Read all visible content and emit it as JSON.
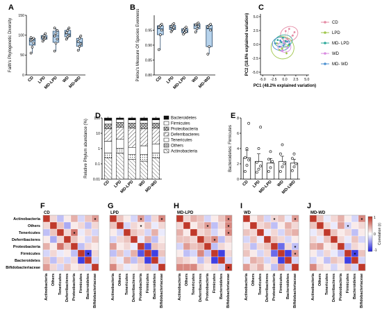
{
  "panel_letters": [
    "A",
    "B",
    "C",
    "D",
    "E",
    "F",
    "G",
    "H",
    "I",
    "J"
  ],
  "colors": {
    "box_fill": "#b7d3ec",
    "box_stroke": "#2a4a6a",
    "bar_fill": "#ffffff",
    "heat_pos": "#c0392b",
    "heat_neg": "#2b2be0"
  },
  "groups": [
    "CD",
    "LPD",
    "MD-LPD",
    "WD",
    "MD-WD"
  ],
  "chart_data": [
    {
      "panel": "A",
      "type": "box",
      "ylabel": "Faith's Phylogenetic Diversity",
      "ylim": [
        0,
        150
      ],
      "yticks": [
        0,
        50,
        100,
        150
      ],
      "categories": [
        "CD",
        "LPD",
        "MD-LPD",
        "WD",
        "MD-WD"
      ],
      "boxes": [
        {
          "min": 55,
          "q1": 75,
          "median": 87,
          "q3": 92,
          "max": 94,
          "points": [
            55,
            70,
            80,
            86,
            89,
            92,
            94
          ]
        },
        {
          "min": 85,
          "q1": 90,
          "median": 94,
          "q3": 99,
          "max": 104,
          "points": [
            85,
            90,
            93,
            95,
            99,
            104
          ]
        },
        {
          "min": 60,
          "q1": 82,
          "median": 98,
          "q3": 110,
          "max": 118,
          "points": [
            60,
            80,
            90,
            98,
            104,
            112,
            118
          ]
        },
        {
          "min": 90,
          "q1": 96,
          "median": 103,
          "q3": 112,
          "max": 118,
          "points": [
            90,
            96,
            100,
            106,
            112,
            118
          ]
        },
        {
          "min": 62,
          "q1": 72,
          "median": 82,
          "q3": 92,
          "max": 98,
          "points": [
            62,
            72,
            78,
            84,
            92,
            98
          ]
        }
      ]
    },
    {
      "panel": "B",
      "type": "box",
      "ylabel": "Pielou's Measure Of Species Evenness",
      "ylim": [
        0.8,
        1.0
      ],
      "yticks": [
        0.8,
        0.85,
        0.9,
        0.95
      ],
      "tick_labels": [
        "0.80",
        "0.85",
        "0.90",
        "0.95"
      ],
      "categories": [
        "CD",
        "LPD",
        "MD-LPD",
        "WD",
        "MD-WD"
      ],
      "boxes": [
        {
          "min": 0.885,
          "q1": 0.935,
          "median": 0.955,
          "q3": 0.965,
          "max": 0.97,
          "points": [
            0.885,
            0.935,
            0.95,
            0.96,
            0.965,
            0.97
          ]
        },
        {
          "min": 0.945,
          "q1": 0.952,
          "median": 0.958,
          "q3": 0.966,
          "max": 0.972,
          "points": [
            0.945,
            0.952,
            0.958,
            0.962,
            0.968,
            0.972
          ]
        },
        {
          "min": 0.937,
          "q1": 0.942,
          "median": 0.948,
          "q3": 0.955,
          "max": 0.96,
          "points": [
            0.937,
            0.942,
            0.946,
            0.95,
            0.955,
            0.96
          ]
        },
        {
          "min": 0.944,
          "q1": 0.955,
          "median": 0.965,
          "q3": 0.971,
          "max": 0.974,
          "points": [
            0.944,
            0.955,
            0.963,
            0.968,
            0.971,
            0.974
          ]
        },
        {
          "min": 0.87,
          "q1": 0.895,
          "median": 0.955,
          "q3": 0.966,
          "max": 0.97,
          "points": [
            0.87,
            0.895,
            0.95,
            0.96,
            0.966,
            0.97
          ]
        }
      ]
    },
    {
      "panel": "C",
      "type": "scatter",
      "xlabel": "PC1 (48.2% explained variation)",
      "ylabel": "PC2 (18.8% explained variation)",
      "xlim": [
        -5.5,
        5.5
      ],
      "ylim": [
        -5.5,
        5.5
      ],
      "xticks": [
        -5.0,
        -2.5,
        0.0,
        2.5,
        5.0
      ],
      "xtick_labels": [
        "-5.0",
        "-2.5",
        "0.0",
        "2.5",
        "5.0"
      ],
      "yticks": [
        -5.0,
        -2.5,
        0.0,
        2.5,
        5.0
      ],
      "ytick_labels": [
        "-5.0",
        "-2.5",
        "0.0",
        "2.5",
        "5.0"
      ],
      "legend": [
        {
          "name": "CD",
          "color": "#e48aa4"
        },
        {
          "name": "LPD",
          "color": "#9fc64a"
        },
        {
          "name": "MD- LPD",
          "color": "#2aa89a"
        },
        {
          "name": "WD",
          "color": "#d98ae0"
        },
        {
          "name": "MD- WD",
          "color": "#4a8fd0"
        }
      ],
      "series": [
        {
          "color": "#e48aa4",
          "points": [
            [
              0.2,
              2.4
            ],
            [
              1.0,
              2.8
            ],
            [
              1.8,
              1.6
            ],
            [
              0.6,
              1.0
            ],
            [
              2.2,
              2.2
            ]
          ]
        },
        {
          "color": "#9fc64a",
          "points": [
            [
              -1.8,
              0.2
            ],
            [
              -0.6,
              -0.8
            ],
            [
              0.4,
              -1.6
            ],
            [
              -1.2,
              -1.0
            ],
            [
              0.8,
              -0.2
            ]
          ]
        },
        {
          "color": "#2aa89a",
          "points": [
            [
              -1.6,
              0.8
            ],
            [
              -0.8,
              0.4
            ],
            [
              0.2,
              0.6
            ],
            [
              -0.4,
              1.2
            ],
            [
              1.0,
              0.0
            ]
          ]
        },
        {
          "color": "#d98ae0",
          "points": [
            [
              -0.9,
              -0.4
            ],
            [
              -0.2,
              0.3
            ],
            [
              0.6,
              -0.6
            ],
            [
              -0.5,
              -1.1
            ]
          ]
        },
        {
          "color": "#4a8fd0",
          "points": [
            [
              -2.2,
              0.2
            ],
            [
              -1.2,
              -0.4
            ],
            [
              -0.3,
              -0.2
            ],
            [
              0.6,
              0.5
            ],
            [
              -1.0,
              0.7
            ]
          ]
        }
      ],
      "ellipses": [
        {
          "color": "#e48aa4",
          "cx": 1.0,
          "cy": 1.9,
          "rx": 2.0,
          "ry": 1.3,
          "angle": -20
        },
        {
          "color": "#9fc64a",
          "cx": -0.5,
          "cy": -0.6,
          "rx": 2.6,
          "ry": 2.0,
          "angle": 15
        },
        {
          "color": "#2aa89a",
          "cx": -0.3,
          "cy": 0.6,
          "rx": 2.0,
          "ry": 1.1,
          "angle": -10
        },
        {
          "color": "#d98ae0",
          "cx": -0.1,
          "cy": -0.4,
          "rx": 1.5,
          "ry": 1.0,
          "angle": 10
        },
        {
          "color": "#4a8fd0",
          "cx": -0.8,
          "cy": 0.1,
          "rx": 2.0,
          "ry": 1.2,
          "angle": 0
        }
      ]
    },
    {
      "panel": "D",
      "type": "stacked_bar",
      "ylabel": "Relative Phylum abundance (%)",
      "yscale": "log",
      "ylim": [
        0.01,
        100
      ],
      "yticks": [
        0.01,
        0.1,
        1,
        10,
        100
      ],
      "tick_labels": [
        "0.01",
        "0.1",
        "1",
        "10",
        "100"
      ],
      "categories": [
        "CD",
        "LPD",
        "MD-LPD",
        "WD",
        "MD-WD"
      ],
      "legend": [
        "Bacteroidetes",
        "Firmicutes",
        "Proteobacteria",
        "Deferribacteres",
        "Tenericutes",
        "Others",
        "Actinobacteria"
      ],
      "bars": [
        {
          "bounds": [
            100,
            70,
            40,
            20,
            3.0,
            0.5,
            0.25,
            0.01
          ]
        },
        {
          "bounds": [
            100,
            80,
            50,
            25,
            4.0,
            1.0,
            0.5,
            0.01
          ]
        },
        {
          "bounds": [
            100,
            75,
            45,
            22,
            1.2,
            0.4,
            0.2,
            0.01
          ]
        },
        {
          "bounds": [
            100,
            70,
            45,
            20,
            1.5,
            0.4,
            0.15,
            0.01
          ]
        },
        {
          "bounds": [
            100,
            75,
            45,
            22,
            2.0,
            0.5,
            0.25,
            0.01
          ]
        }
      ]
    },
    {
      "panel": "E",
      "type": "bar",
      "ylabel": "Bacteroidetes: Firmicutes",
      "ylim": [
        0,
        8
      ],
      "yticks": [
        0,
        2,
        4,
        6,
        8
      ],
      "categories": [
        "CD",
        "LPD",
        "MD-LPD",
        "WD",
        "MD-LWD"
      ],
      "values": [
        2.8,
        2.3,
        2.1,
        2.3,
        2.1
      ],
      "errors": [
        1.0,
        1.0,
        0.6,
        0.7,
        0.5
      ],
      "points": [
        [
          1.0,
          1.8,
          2.5,
          2.8,
          4.0,
          7.3
        ],
        [
          0.9,
          1.3,
          1.7,
          2.2,
          4.0,
          6.8
        ],
        [
          1.0,
          1.5,
          2.3,
          2.6,
          3.6
        ],
        [
          1.0,
          1.6,
          2.0,
          3.3,
          4.5
        ],
        [
          1.1,
          1.6,
          2.0,
          2.7,
          3.3
        ]
      ]
    }
  ],
  "heatmaps": {
    "row_labels": [
      "Actinobacteria",
      "Others",
      "Tenericutes",
      "Deferribacteres",
      "Proteobacteria",
      "Firmicutes",
      "Bacteroidetes",
      "Bifidobacteriaceae"
    ],
    "col_labels": [
      "Actinobacteria",
      "Others",
      "Tenericutes",
      "Deferribacteres",
      "Proteobacteria",
      "Firmicutes",
      "Bacteroidetes",
      "Bifidobacteriaceae"
    ],
    "colorbar_label": "Correlation (r)",
    "colorbar_ticks": [
      "1",
      "0",
      "-1"
    ],
    "panels": [
      {
        "title": "CD",
        "matrix": [
          [
            1,
            0.2,
            -0.3,
            0.1,
            0.4,
            -0.2,
            0.3,
            0.5
          ],
          [
            0.2,
            1,
            0.3,
            -0.4,
            0.1,
            0.2,
            -0.3,
            0.2
          ],
          [
            -0.3,
            0.3,
            1,
            0.2,
            0.7,
            -0.1,
            0.2,
            -0.2
          ],
          [
            0.1,
            -0.4,
            0.2,
            1,
            0.3,
            0.1,
            -0.2,
            0.3
          ],
          [
            0.4,
            0.1,
            0.7,
            0.3,
            1,
            -0.3,
            0.2,
            0.1
          ],
          [
            -0.2,
            0.2,
            -0.1,
            0.1,
            -0.3,
            1,
            -0.9,
            0.2
          ],
          [
            0.3,
            -0.3,
            0.2,
            -0.2,
            0.2,
            -0.9,
            1,
            -0.2
          ],
          [
            0.5,
            0.2,
            -0.2,
            0.3,
            0.1,
            0.2,
            -0.2,
            1
          ]
        ],
        "stars": [
          [
            0,
            7
          ],
          [
            2,
            4
          ],
          [
            5,
            6
          ]
        ]
      },
      {
        "title": "LPD",
        "matrix": [
          [
            1,
            0.3,
            0.1,
            -0.2,
            0.5,
            -0.3,
            0.2,
            0.6
          ],
          [
            0.3,
            1,
            -0.2,
            0.2,
            0.1,
            0.3,
            -0.1,
            0.2
          ],
          [
            0.1,
            -0.2,
            1,
            0.3,
            0.2,
            -0.2,
            0.4,
            -0.1
          ],
          [
            -0.2,
            0.2,
            0.3,
            1,
            -0.1,
            0.4,
            -0.3,
            0.1
          ],
          [
            0.5,
            0.1,
            0.2,
            -0.1,
            1,
            -0.8,
            0.3,
            0.2
          ],
          [
            -0.3,
            0.3,
            -0.2,
            0.4,
            -0.8,
            1,
            -0.9,
            0.3
          ],
          [
            0.2,
            -0.1,
            0.4,
            -0.3,
            0.3,
            -0.9,
            1,
            -0.2
          ],
          [
            0.6,
            0.2,
            -0.1,
            0.1,
            0.2,
            0.3,
            -0.2,
            1
          ]
        ],
        "stars": [
          [
            0,
            4
          ],
          [
            0,
            7
          ],
          [
            1,
            4
          ]
        ]
      },
      {
        "title": "MD-LPD",
        "matrix": [
          [
            1,
            0.2,
            0.4,
            0.3,
            -0.2,
            0.1,
            0.3,
            0.6
          ],
          [
            0.2,
            1,
            0.1,
            0.3,
            0.5,
            -0.3,
            0.2,
            0.6
          ],
          [
            0.4,
            0.1,
            1,
            0.2,
            0.3,
            -0.2,
            0.1,
            0.6
          ],
          [
            0.3,
            0.3,
            0.2,
            1,
            0.4,
            0.6,
            -0.3,
            0.2
          ],
          [
            -0.2,
            0.5,
            0.3,
            0.4,
            1,
            -0.3,
            0.2,
            0.1
          ],
          [
            0.1,
            -0.3,
            -0.2,
            0.6,
            -0.3,
            1,
            -0.9,
            0.2
          ],
          [
            0.3,
            0.2,
            0.1,
            -0.3,
            0.2,
            -0.9,
            1,
            -0.2
          ],
          [
            0.6,
            0.6,
            0.6,
            0.2,
            0.1,
            0.2,
            -0.2,
            1
          ]
        ],
        "stars": [
          [
            0,
            7
          ],
          [
            1,
            7
          ],
          [
            2,
            7
          ],
          [
            1,
            4
          ],
          [
            3,
            5
          ],
          [
            7,
            7
          ]
        ]
      },
      {
        "title": "WD",
        "matrix": [
          [
            1,
            0.1,
            0.3,
            -0.2,
            0.2,
            0.3,
            -0.1,
            0.5
          ],
          [
            0.1,
            1,
            0.2,
            0.3,
            -0.3,
            0.1,
            0.4,
            0.2
          ],
          [
            0.3,
            0.2,
            1,
            -0.1,
            0.2,
            -0.2,
            0.3,
            0.4
          ],
          [
            -0.2,
            0.3,
            -0.1,
            1,
            0.3,
            0.2,
            -0.2,
            0.1
          ],
          [
            0.2,
            -0.3,
            0.2,
            0.3,
            1,
            -0.7,
            0.2,
            -0.3
          ],
          [
            0.3,
            0.1,
            -0.2,
            0.2,
            -0.7,
            1,
            -0.9,
            0.5
          ],
          [
            -0.1,
            0.4,
            0.3,
            -0.2,
            0.2,
            -0.9,
            1,
            -0.2
          ],
          [
            0.5,
            0.2,
            0.4,
            0.1,
            -0.3,
            0.5,
            -0.2,
            1
          ]
        ],
        "stars": [
          [
            0,
            4
          ],
          [
            0,
            7
          ],
          [
            4,
            7
          ],
          [
            5,
            7
          ]
        ]
      },
      {
        "title": "MD-WD",
        "matrix": [
          [
            1,
            0.3,
            -0.1,
            0.2,
            0.4,
            0.1,
            -0.2,
            0.6
          ],
          [
            0.3,
            1,
            0.2,
            -0.1,
            0.5,
            -0.2,
            0.1,
            0.2
          ],
          [
            -0.1,
            0.2,
            1,
            0.3,
            0.1,
            0.2,
            -0.3,
            0.1
          ],
          [
            0.2,
            -0.1,
            0.3,
            1,
            0.2,
            -0.1,
            0.3,
            -0.2
          ],
          [
            0.4,
            0.5,
            0.1,
            0.2,
            1,
            -0.3,
            0.2,
            0.1
          ],
          [
            0.1,
            -0.2,
            0.2,
            -0.1,
            -0.3,
            1,
            -0.9,
            0.3
          ],
          [
            -0.2,
            0.1,
            -0.3,
            0.3,
            0.2,
            -0.9,
            1,
            -0.2
          ],
          [
            0.6,
            0.2,
            0.1,
            -0.2,
            0.1,
            0.3,
            -0.2,
            1
          ]
        ],
        "stars": [
          [
            0,
            7
          ],
          [
            1,
            5
          ],
          [
            5,
            6
          ]
        ]
      }
    ]
  }
}
